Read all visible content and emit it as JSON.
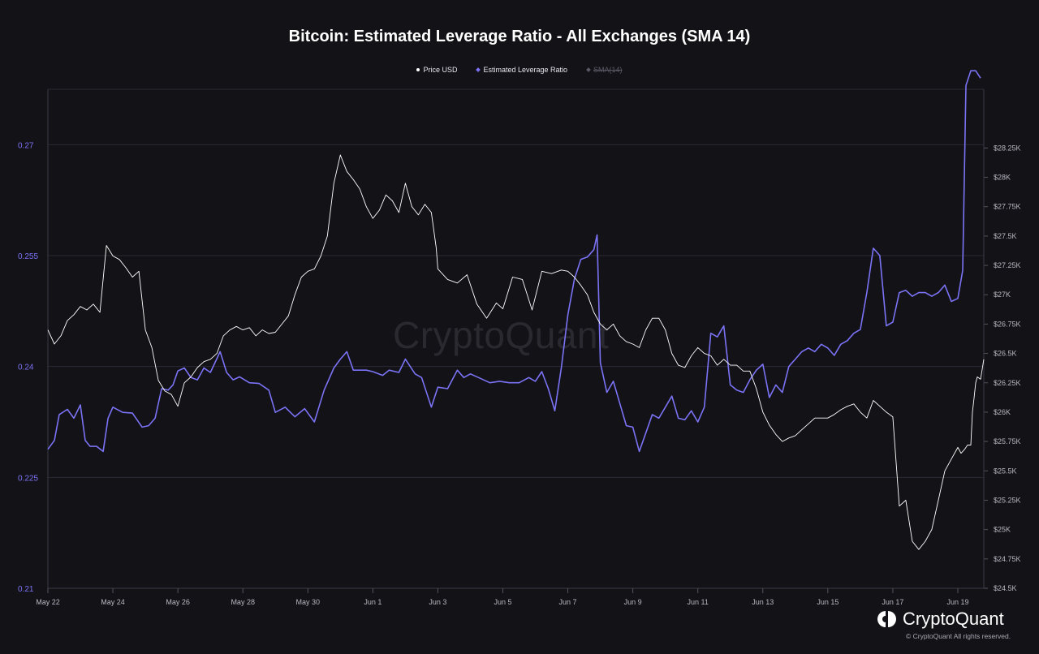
{
  "chart_data": {
    "type": "line",
    "title": "Bitcoin: Estimated Leverage Ratio - All Exchanges (SMA 14)",
    "legend": [
      {
        "label": "Price USD",
        "color": "#ffffff",
        "active": true
      },
      {
        "label": "Estimated Leverage Ratio",
        "color": "#7b73f5",
        "active": true
      },
      {
        "label": "SMA(14)",
        "color": "#5a5966",
        "active": false
      }
    ],
    "x_ticks": [
      "May 22",
      "May 24",
      "May 26",
      "May 28",
      "May 30",
      "Jun 1",
      "Jun 3",
      "Jun 5",
      "Jun 7",
      "Jun 9",
      "Jun 11",
      "Jun 13",
      "Jun 15",
      "Jun 17",
      "Jun 19"
    ],
    "x_range_days": [
      0,
      28.8
    ],
    "left_axis": {
      "ticks": [
        "0.21",
        "0.225",
        "0.24",
        "0.255",
        "0.27"
      ],
      "ylim": [
        0.21,
        0.2775
      ],
      "color": "#7b73f5"
    },
    "right_axis": {
      "ticks": [
        "$24.5K",
        "$24.75K",
        "$25K",
        "$25.25K",
        "$25.5K",
        "$25.75K",
        "$26K",
        "$26.25K",
        "$26.5K",
        "$26.75K",
        "$27K",
        "$27.25K",
        "$27.5K",
        "$27.75K",
        "$28K",
        "$28.25K"
      ],
      "ylim": [
        24500,
        28750
      ]
    },
    "grid": true,
    "series": [
      {
        "name": "Estimated Leverage Ratio",
        "axis": "left",
        "color": "#7b73f5",
        "points": [
          [
            0,
            0.2288
          ],
          [
            0.2,
            0.23
          ],
          [
            0.35,
            0.2335
          ],
          [
            0.6,
            0.2342
          ],
          [
            0.8,
            0.233
          ],
          [
            1.0,
            0.2348
          ],
          [
            1.15,
            0.23
          ],
          [
            1.3,
            0.2292
          ],
          [
            1.5,
            0.2292
          ],
          [
            1.7,
            0.2285
          ],
          [
            1.85,
            0.233
          ],
          [
            2.0,
            0.2345
          ],
          [
            2.3,
            0.2338
          ],
          [
            2.6,
            0.2337
          ],
          [
            2.9,
            0.2318
          ],
          [
            3.1,
            0.232
          ],
          [
            3.3,
            0.233
          ],
          [
            3.5,
            0.237
          ],
          [
            3.7,
            0.2368
          ],
          [
            3.85,
            0.2375
          ],
          [
            4.0,
            0.2394
          ],
          [
            4.2,
            0.2398
          ],
          [
            4.4,
            0.2385
          ],
          [
            4.6,
            0.2382
          ],
          [
            4.8,
            0.2398
          ],
          [
            5.0,
            0.2392
          ],
          [
            5.3,
            0.242
          ],
          [
            5.5,
            0.2392
          ],
          [
            5.7,
            0.2382
          ],
          [
            5.9,
            0.2386
          ],
          [
            6.2,
            0.2378
          ],
          [
            6.5,
            0.2377
          ],
          [
            6.8,
            0.2368
          ],
          [
            7.0,
            0.2338
          ],
          [
            7.3,
            0.2345
          ],
          [
            7.6,
            0.2332
          ],
          [
            7.9,
            0.2343
          ],
          [
            8.2,
            0.2325
          ],
          [
            8.5,
            0.2368
          ],
          [
            8.8,
            0.2398
          ],
          [
            9.0,
            0.241
          ],
          [
            9.2,
            0.242
          ],
          [
            9.4,
            0.2395
          ],
          [
            9.6,
            0.2395
          ],
          [
            9.8,
            0.2395
          ],
          [
            10.0,
            0.2393
          ],
          [
            10.3,
            0.2388
          ],
          [
            10.5,
            0.2395
          ],
          [
            10.8,
            0.2392
          ],
          [
            11.0,
            0.241
          ],
          [
            11.3,
            0.239
          ],
          [
            11.5,
            0.2385
          ],
          [
            11.8,
            0.2345
          ],
          [
            12.0,
            0.2372
          ],
          [
            12.3,
            0.237
          ],
          [
            12.6,
            0.2395
          ],
          [
            12.8,
            0.2385
          ],
          [
            13.0,
            0.239
          ],
          [
            13.3,
            0.2384
          ],
          [
            13.6,
            0.2378
          ],
          [
            13.9,
            0.238
          ],
          [
            14.2,
            0.2378
          ],
          [
            14.5,
            0.2378
          ],
          [
            14.8,
            0.2385
          ],
          [
            15.0,
            0.238
          ],
          [
            15.2,
            0.2393
          ],
          [
            15.4,
            0.237
          ],
          [
            15.6,
            0.234
          ],
          [
            15.8,
            0.2398
          ],
          [
            16.0,
            0.247
          ],
          [
            16.2,
            0.2518
          ],
          [
            16.4,
            0.2545
          ],
          [
            16.6,
            0.2548
          ],
          [
            16.8,
            0.2558
          ],
          [
            16.9,
            0.2578
          ],
          [
            17.0,
            0.2405
          ],
          [
            17.2,
            0.2365
          ],
          [
            17.4,
            0.238
          ],
          [
            17.6,
            0.235
          ],
          [
            17.8,
            0.232
          ],
          [
            18.0,
            0.2318
          ],
          [
            18.2,
            0.2285
          ],
          [
            18.4,
            0.231
          ],
          [
            18.6,
            0.2335
          ],
          [
            18.8,
            0.233
          ],
          [
            19.0,
            0.2345
          ],
          [
            19.2,
            0.236
          ],
          [
            19.4,
            0.233
          ],
          [
            19.6,
            0.2328
          ],
          [
            19.8,
            0.234
          ],
          [
            20.0,
            0.2325
          ],
          [
            20.2,
            0.2345
          ],
          [
            20.4,
            0.2445
          ],
          [
            20.6,
            0.244
          ],
          [
            20.8,
            0.2455
          ],
          [
            21.0,
            0.2375
          ],
          [
            21.2,
            0.2368
          ],
          [
            21.4,
            0.2365
          ],
          [
            21.6,
            0.2382
          ],
          [
            21.8,
            0.2395
          ],
          [
            22.0,
            0.2403
          ],
          [
            22.2,
            0.2358
          ],
          [
            22.4,
            0.2375
          ],
          [
            22.6,
            0.2365
          ],
          [
            22.8,
            0.24
          ],
          [
            23.0,
            0.241
          ],
          [
            23.2,
            0.242
          ],
          [
            23.4,
            0.2425
          ],
          [
            23.6,
            0.242
          ],
          [
            23.8,
            0.243
          ],
          [
            24.0,
            0.2425
          ],
          [
            24.2,
            0.2415
          ],
          [
            24.4,
            0.243
          ],
          [
            24.6,
            0.2435
          ],
          [
            24.8,
            0.2445
          ],
          [
            25.0,
            0.245
          ],
          [
            25.2,
            0.25
          ],
          [
            25.4,
            0.256
          ],
          [
            25.6,
            0.255
          ],
          [
            25.8,
            0.2455
          ],
          [
            26.0,
            0.246
          ],
          [
            26.2,
            0.25
          ],
          [
            26.4,
            0.2503
          ],
          [
            26.6,
            0.2495
          ],
          [
            26.8,
            0.25
          ],
          [
            27.0,
            0.25
          ],
          [
            27.2,
            0.2495
          ],
          [
            27.4,
            0.25
          ],
          [
            27.6,
            0.251
          ],
          [
            27.8,
            0.2488
          ],
          [
            28.0,
            0.2492
          ],
          [
            28.15,
            0.253
          ],
          [
            28.25,
            0.278
          ],
          [
            28.4,
            0.28
          ],
          [
            28.55,
            0.28
          ],
          [
            28.7,
            0.279
          ]
        ]
      },
      {
        "name": "Price USD",
        "axis": "right",
        "color": "#ffffff",
        "points": [
          [
            0,
            26700
          ],
          [
            0.2,
            26580
          ],
          [
            0.4,
            26650
          ],
          [
            0.6,
            26780
          ],
          [
            0.8,
            26830
          ],
          [
            1.0,
            26900
          ],
          [
            1.2,
            26870
          ],
          [
            1.4,
            26920
          ],
          [
            1.6,
            26850
          ],
          [
            1.8,
            27420
          ],
          [
            2.0,
            27330
          ],
          [
            2.2,
            27300
          ],
          [
            2.4,
            27230
          ],
          [
            2.6,
            27150
          ],
          [
            2.8,
            27200
          ],
          [
            3.0,
            26700
          ],
          [
            3.2,
            26550
          ],
          [
            3.4,
            26270
          ],
          [
            3.6,
            26180
          ],
          [
            3.8,
            26150
          ],
          [
            4.0,
            26050
          ],
          [
            4.2,
            26250
          ],
          [
            4.4,
            26300
          ],
          [
            4.6,
            26380
          ],
          [
            4.8,
            26430
          ],
          [
            5.0,
            26450
          ],
          [
            5.2,
            26500
          ],
          [
            5.4,
            26650
          ],
          [
            5.6,
            26700
          ],
          [
            5.8,
            26730
          ],
          [
            6.0,
            26700
          ],
          [
            6.2,
            26720
          ],
          [
            6.4,
            26650
          ],
          [
            6.6,
            26700
          ],
          [
            6.8,
            26670
          ],
          [
            7.0,
            26680
          ],
          [
            7.2,
            26750
          ],
          [
            7.4,
            26820
          ],
          [
            7.6,
            27000
          ],
          [
            7.8,
            27150
          ],
          [
            8.0,
            27200
          ],
          [
            8.2,
            27220
          ],
          [
            8.4,
            27330
          ],
          [
            8.6,
            27500
          ],
          [
            8.8,
            27950
          ],
          [
            9.0,
            28190
          ],
          [
            9.2,
            28050
          ],
          [
            9.4,
            27980
          ],
          [
            9.6,
            27900
          ],
          [
            9.8,
            27750
          ],
          [
            10.0,
            27650
          ],
          [
            10.2,
            27720
          ],
          [
            10.4,
            27850
          ],
          [
            10.6,
            27800
          ],
          [
            10.8,
            27700
          ],
          [
            11.0,
            27950
          ],
          [
            11.2,
            27750
          ],
          [
            11.4,
            27680
          ],
          [
            11.6,
            27770
          ],
          [
            11.8,
            27700
          ],
          [
            11.95,
            27400
          ],
          [
            12.0,
            27220
          ],
          [
            12.3,
            27130
          ],
          [
            12.6,
            27100
          ],
          [
            12.9,
            27170
          ],
          [
            13.2,
            26920
          ],
          [
            13.5,
            26800
          ],
          [
            13.8,
            26930
          ],
          [
            14.0,
            26880
          ],
          [
            14.3,
            27150
          ],
          [
            14.6,
            27130
          ],
          [
            14.9,
            26870
          ],
          [
            15.2,
            27200
          ],
          [
            15.5,
            27180
          ],
          [
            15.8,
            27210
          ],
          [
            16.0,
            27200
          ],
          [
            16.2,
            27150
          ],
          [
            16.4,
            27080
          ],
          [
            16.6,
            27000
          ],
          [
            16.8,
            26850
          ],
          [
            17.0,
            26750
          ],
          [
            17.2,
            26700
          ],
          [
            17.4,
            26750
          ],
          [
            17.6,
            26650
          ],
          [
            17.8,
            26600
          ],
          [
            18.0,
            26580
          ],
          [
            18.2,
            26550
          ],
          [
            18.4,
            26700
          ],
          [
            18.6,
            26800
          ],
          [
            18.8,
            26800
          ],
          [
            19.0,
            26700
          ],
          [
            19.2,
            26500
          ],
          [
            19.4,
            26400
          ],
          [
            19.6,
            26380
          ],
          [
            19.8,
            26480
          ],
          [
            20.0,
            26550
          ],
          [
            20.2,
            26500
          ],
          [
            20.4,
            26480
          ],
          [
            20.6,
            26400
          ],
          [
            20.8,
            26450
          ],
          [
            21.0,
            26400
          ],
          [
            21.2,
            26400
          ],
          [
            21.4,
            26350
          ],
          [
            21.6,
            26350
          ],
          [
            21.8,
            26200
          ],
          [
            22.0,
            26000
          ],
          [
            22.2,
            25890
          ],
          [
            22.4,
            25810
          ],
          [
            22.6,
            25750
          ],
          [
            22.8,
            25780
          ],
          [
            23.0,
            25800
          ],
          [
            23.2,
            25850
          ],
          [
            23.4,
            25900
          ],
          [
            23.6,
            25950
          ],
          [
            23.8,
            25950
          ],
          [
            24.0,
            25950
          ],
          [
            24.2,
            25980
          ],
          [
            24.4,
            26020
          ],
          [
            24.6,
            26050
          ],
          [
            24.8,
            26070
          ],
          [
            25.0,
            26000
          ],
          [
            25.2,
            25950
          ],
          [
            25.4,
            26100
          ],
          [
            25.6,
            26050
          ],
          [
            25.8,
            26000
          ],
          [
            26.0,
            25960
          ],
          [
            26.2,
            25200
          ],
          [
            26.4,
            25250
          ],
          [
            26.6,
            24900
          ],
          [
            26.8,
            24830
          ],
          [
            27.0,
            24900
          ],
          [
            27.2,
            25000
          ],
          [
            27.4,
            25250
          ],
          [
            27.6,
            25500
          ],
          [
            27.8,
            25600
          ],
          [
            28.0,
            25700
          ],
          [
            28.1,
            25650
          ],
          [
            28.2,
            25680
          ],
          [
            28.3,
            25720
          ],
          [
            28.4,
            25720
          ],
          [
            28.45,
            26000
          ],
          [
            28.5,
            26120
          ],
          [
            28.55,
            26250
          ],
          [
            28.6,
            26300
          ],
          [
            28.7,
            26280
          ],
          [
            28.8,
            26450
          ]
        ]
      }
    ],
    "watermark": "CryptoQuant"
  },
  "brand": {
    "name": "CryptoQuant",
    "copyright": "© CryptoQuant All rights reserved."
  }
}
